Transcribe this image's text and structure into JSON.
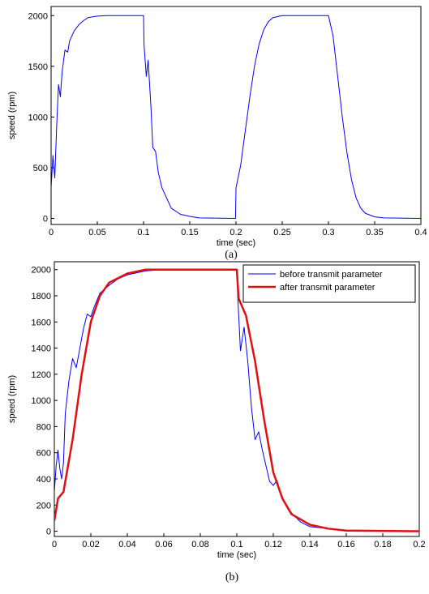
{
  "chart_data": [
    {
      "type": "line",
      "caption": "(a)",
      "xlabel": "time (sec)",
      "ylabel": "speed (rpm)",
      "xlim": [
        0,
        0.4
      ],
      "ylim": [
        -60,
        2090
      ],
      "xticks": [
        0,
        0.05,
        0.1,
        0.15,
        0.2,
        0.25,
        0.3,
        0.35,
        0.4
      ],
      "yticks": [
        0,
        500,
        1000,
        1500,
        2000
      ],
      "series": [
        {
          "color": "#0000ff",
          "x": [
            0,
            0.002,
            0.004,
            0.006,
            0.008,
            0.01,
            0.012,
            0.015,
            0.018,
            0.02,
            0.025,
            0.03,
            0.035,
            0.04,
            0.05,
            0.06,
            0.1,
            0.1005,
            0.103,
            0.105,
            0.108,
            0.11,
            0.113,
            0.116,
            0.12,
            0.125,
            0.13,
            0.14,
            0.15,
            0.16,
            0.1995,
            0.2,
            0.205,
            0.21,
            0.215,
            0.22,
            0.225,
            0.23,
            0.235,
            0.24,
            0.25,
            0.3,
            0.305,
            0.31,
            0.315,
            0.32,
            0.325,
            0.33,
            0.335,
            0.34,
            0.35,
            0.36,
            0.4
          ],
          "values": [
            300,
            620,
            400,
            900,
            1320,
            1200,
            1450,
            1660,
            1640,
            1750,
            1850,
            1910,
            1950,
            1980,
            1995,
            2000,
            2000,
            1720,
            1400,
            1560,
            1100,
            700,
            660,
            450,
            300,
            200,
            100,
            40,
            20,
            5,
            0,
            300,
            520,
            860,
            1200,
            1500,
            1720,
            1860,
            1940,
            1980,
            2000,
            2000,
            1800,
            1400,
            1000,
            650,
            380,
            200,
            100,
            50,
            15,
            5,
            0
          ]
        }
      ]
    },
    {
      "type": "line",
      "caption": "(b)",
      "xlabel": "time (sec)",
      "ylabel": "speed (rpm)",
      "xlim": [
        0,
        0.2
      ],
      "ylim": [
        -40,
        2060
      ],
      "xticks": [
        0,
        0.02,
        0.04,
        0.06,
        0.08,
        0.1,
        0.12,
        0.14,
        0.16,
        0.18,
        0.2
      ],
      "yticks": [
        0,
        200,
        400,
        600,
        800,
        1000,
        1200,
        1400,
        1600,
        1800,
        2000
      ],
      "legend": "upper right",
      "series": [
        {
          "name": "before transmit parameter",
          "color": "#0000ff",
          "width": 1,
          "x": [
            0,
            0.001,
            0.002,
            0.003,
            0.004,
            0.005,
            0.006,
            0.008,
            0.01,
            0.012,
            0.014,
            0.016,
            0.018,
            0.02,
            0.022,
            0.025,
            0.03,
            0.035,
            0.04,
            0.05,
            0.06,
            0.1,
            0.1005,
            0.102,
            0.104,
            0.106,
            0.108,
            0.11,
            0.112,
            0.114,
            0.116,
            0.118,
            0.12,
            0.122,
            0.125,
            0.128,
            0.13,
            0.135,
            0.14,
            0.15,
            0.16,
            0.2
          ],
          "values": [
            300,
            500,
            620,
            480,
            400,
            520,
            900,
            1150,
            1320,
            1250,
            1400,
            1550,
            1660,
            1640,
            1720,
            1820,
            1880,
            1930,
            1960,
            1990,
            2000,
            2000,
            1800,
            1380,
            1560,
            1300,
            950,
            700,
            760,
            620,
            500,
            380,
            350,
            390,
            250,
            180,
            140,
            70,
            35,
            20,
            5,
            0
          ]
        },
        {
          "name": "after transmit parameter",
          "color": "#e01010",
          "width": 2.5,
          "x": [
            0,
            0.002,
            0.005,
            0.01,
            0.015,
            0.02,
            0.025,
            0.03,
            0.04,
            0.05,
            0.1,
            0.101,
            0.105,
            0.11,
            0.115,
            0.12,
            0.125,
            0.13,
            0.14,
            0.15,
            0.16,
            0.2
          ],
          "values": [
            80,
            250,
            300,
            700,
            1200,
            1600,
            1800,
            1900,
            1970,
            2000,
            2000,
            1780,
            1650,
            1300,
            850,
            450,
            250,
            130,
            50,
            20,
            5,
            0
          ]
        }
      ]
    }
  ]
}
